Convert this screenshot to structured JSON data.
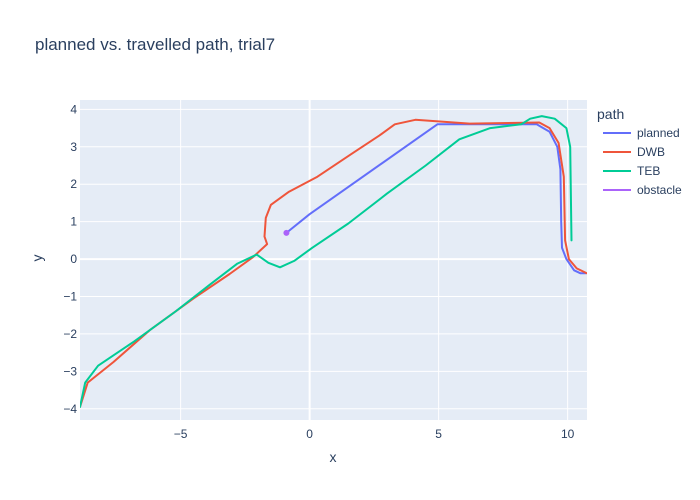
{
  "chart_data": {
    "type": "line",
    "title": "planned vs. travelled path, trial7",
    "xlabel": "x",
    "ylabel": "y",
    "xlim": [
      -8.9,
      10.75
    ],
    "ylim": [
      -4.3,
      4.25
    ],
    "xticks": [
      -5,
      0,
      5,
      10
    ],
    "yticks": [
      -4,
      -3,
      -2,
      -1,
      0,
      1,
      2,
      3,
      4
    ],
    "tick_labels": {
      "x": [
        "−5",
        "0",
        "5",
        "10"
      ],
      "y": [
        "−4",
        "−3",
        "−2",
        "−1",
        "0",
        "1",
        "2",
        "3",
        "4"
      ]
    },
    "grid": true,
    "legend_title": "path",
    "legend_position": "top-right outside",
    "colors": {
      "background": "#e5ecf6",
      "grid": "#ffffff"
    },
    "series": [
      {
        "name": "planned",
        "color": "#636efa",
        "mode": "lines",
        "points": [
          [
            -0.9,
            0.7
          ],
          [
            0,
            1.2
          ],
          [
            4.95,
            3.6
          ],
          [
            8.8,
            3.6
          ],
          [
            9.3,
            3.4
          ],
          [
            9.6,
            3.0
          ],
          [
            9.72,
            2.4
          ],
          [
            9.75,
            1.0
          ],
          [
            9.78,
            0.3
          ],
          [
            9.95,
            0.0
          ],
          [
            10.25,
            -0.3
          ],
          [
            10.5,
            -0.38
          ],
          [
            10.7,
            -0.38
          ]
        ]
      },
      {
        "name": "DWB",
        "color": "#ef553b",
        "mode": "lines",
        "points": [
          [
            -8.9,
            -3.95
          ],
          [
            -8.6,
            -3.3
          ],
          [
            -7.6,
            -2.75
          ],
          [
            -6.2,
            -1.9
          ],
          [
            -4.5,
            -1.05
          ],
          [
            -3.1,
            -0.4
          ],
          [
            -2.2,
            0.05
          ],
          [
            -1.65,
            0.4
          ],
          [
            -1.75,
            0.6
          ],
          [
            -1.7,
            1.1
          ],
          [
            -1.5,
            1.45
          ],
          [
            -0.8,
            1.8
          ],
          [
            0.3,
            2.2
          ],
          [
            1.6,
            2.8
          ],
          [
            2.7,
            3.3
          ],
          [
            3.3,
            3.6
          ],
          [
            4.1,
            3.72
          ],
          [
            6.2,
            3.62
          ],
          [
            8.9,
            3.65
          ],
          [
            9.3,
            3.5
          ],
          [
            9.65,
            3.1
          ],
          [
            9.85,
            2.2
          ],
          [
            9.9,
            0.5
          ],
          [
            10.05,
            0.0
          ],
          [
            10.35,
            -0.25
          ],
          [
            10.75,
            -0.38
          ]
        ]
      },
      {
        "name": "TEB",
        "color": "#00cc96",
        "mode": "lines",
        "points": [
          [
            -8.9,
            -3.95
          ],
          [
            -8.7,
            -3.3
          ],
          [
            -8.2,
            -2.85
          ],
          [
            -6.8,
            -2.2
          ],
          [
            -5.2,
            -1.4
          ],
          [
            -3.9,
            -0.7
          ],
          [
            -2.8,
            -0.12
          ],
          [
            -2.05,
            0.12
          ],
          [
            -1.6,
            -0.1
          ],
          [
            -1.15,
            -0.22
          ],
          [
            -0.6,
            -0.05
          ],
          [
            0.1,
            0.3
          ],
          [
            1.5,
            0.95
          ],
          [
            3.0,
            1.75
          ],
          [
            4.5,
            2.5
          ],
          [
            5.8,
            3.2
          ],
          [
            7.0,
            3.5
          ],
          [
            8.2,
            3.6
          ],
          [
            8.55,
            3.75
          ],
          [
            9.0,
            3.82
          ],
          [
            9.5,
            3.75
          ],
          [
            9.95,
            3.5
          ],
          [
            10.1,
            3.0
          ],
          [
            10.15,
            0.5
          ]
        ]
      },
      {
        "name": "obstacle",
        "color": "#ab63fa",
        "mode": "markers",
        "points": [
          [
            -0.9,
            0.7
          ]
        ]
      }
    ]
  }
}
